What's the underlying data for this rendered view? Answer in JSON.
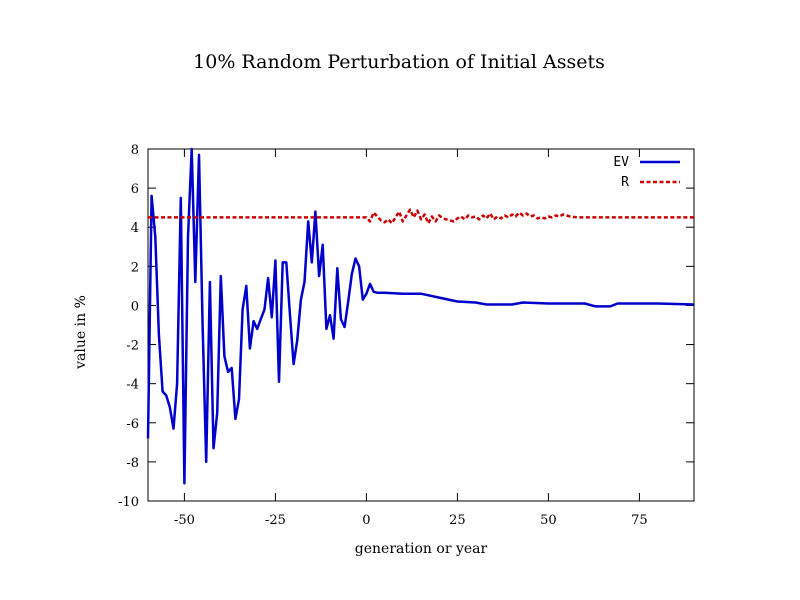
{
  "chart_data": {
    "type": "line",
    "title": "10% Random Perturbation of Initial Assets",
    "xlabel": "generation or year",
    "ylabel": "value in %",
    "xlim": [
      -60,
      90
    ],
    "ylim": [
      -10,
      8
    ],
    "xticks": [
      -50,
      -25,
      0,
      25,
      50,
      75
    ],
    "yticks": [
      -10,
      -8,
      -6,
      -4,
      -2,
      0,
      2,
      4,
      6,
      8
    ],
    "grid": false,
    "legend": "top-right",
    "series": [
      {
        "name": "EV",
        "color": "#0000cc",
        "style": "solid",
        "points": [
          [
            -60,
            -6.8
          ],
          [
            -59,
            5.6
          ],
          [
            -58,
            3.5
          ],
          [
            -57,
            -1.5
          ],
          [
            -56,
            -4.4
          ],
          [
            -55,
            -4.6
          ],
          [
            -54,
            -5.2
          ],
          [
            -53,
            -6.3
          ],
          [
            -52,
            -4.0
          ],
          [
            -51,
            5.5
          ],
          [
            -50,
            -9.1
          ],
          [
            -49,
            3.5
          ],
          [
            -48,
            8.0
          ],
          [
            -47,
            1.2
          ],
          [
            -46,
            7.7
          ],
          [
            -45,
            -1.0
          ],
          [
            -44,
            -8.0
          ],
          [
            -43,
            1.2
          ],
          [
            -42,
            -7.3
          ],
          [
            -41,
            -5.5
          ],
          [
            -40,
            1.5
          ],
          [
            -39,
            -2.6
          ],
          [
            -38,
            -3.4
          ],
          [
            -37,
            -3.2
          ],
          [
            -36,
            -5.8
          ],
          [
            -35,
            -4.8
          ],
          [
            -34,
            -0.2
          ],
          [
            -33,
            1.0
          ],
          [
            -32,
            -2.2
          ],
          [
            -31,
            -0.8
          ],
          [
            -30,
            -1.2
          ],
          [
            -29,
            -0.7
          ],
          [
            -28,
            -0.2
          ],
          [
            -27,
            1.4
          ],
          [
            -26,
            -0.6
          ],
          [
            -25,
            2.3
          ],
          [
            -24,
            -3.9
          ],
          [
            -23,
            2.2
          ],
          [
            -22,
            2.2
          ],
          [
            -21,
            -0.5
          ],
          [
            -20,
            -3.0
          ],
          [
            -19,
            -1.8
          ],
          [
            -18,
            0.3
          ],
          [
            -17,
            1.2
          ],
          [
            -16,
            4.3
          ],
          [
            -15,
            2.2
          ],
          [
            -14,
            4.8
          ],
          [
            -13,
            1.5
          ],
          [
            -12,
            3.1
          ],
          [
            -11,
            -1.2
          ],
          [
            -10,
            -0.5
          ],
          [
            -9,
            -1.7
          ],
          [
            -8,
            1.9
          ],
          [
            -7,
            -0.7
          ],
          [
            -6,
            -1.1
          ],
          [
            -5,
            0.2
          ],
          [
            -4,
            1.6
          ],
          [
            -3,
            2.4
          ],
          [
            -2,
            2.0
          ],
          [
            -1,
            0.3
          ],
          [
            0,
            0.6
          ],
          [
            1,
            1.1
          ],
          [
            2,
            0.7
          ],
          [
            3,
            0.65
          ],
          [
            5,
            0.65
          ],
          [
            10,
            0.6
          ],
          [
            15,
            0.6
          ],
          [
            20,
            0.4
          ],
          [
            25,
            0.2
          ],
          [
            30,
            0.15
          ],
          [
            33,
            0.05
          ],
          [
            40,
            0.05
          ],
          [
            43,
            0.15
          ],
          [
            50,
            0.1
          ],
          [
            60,
            0.1
          ],
          [
            63,
            -0.05
          ],
          [
            67,
            -0.05
          ],
          [
            69,
            0.1
          ],
          [
            80,
            0.1
          ],
          [
            90,
            0.05
          ]
        ]
      },
      {
        "name": "R",
        "color": "#cc0000",
        "style": "dashed",
        "points": [
          [
            -60,
            4.5
          ],
          [
            0,
            4.5
          ],
          [
            1,
            4.3
          ],
          [
            2,
            4.75
          ],
          [
            3,
            4.55
          ],
          [
            4,
            4.35
          ],
          [
            5,
            4.25
          ],
          [
            6,
            4.4
          ],
          [
            7,
            4.2
          ],
          [
            8,
            4.5
          ],
          [
            9,
            4.8
          ],
          [
            10,
            4.3
          ],
          [
            11,
            4.6
          ],
          [
            12,
            4.9
          ],
          [
            13,
            4.5
          ],
          [
            14,
            4.85
          ],
          [
            15,
            4.4
          ],
          [
            16,
            4.65
          ],
          [
            17,
            4.2
          ],
          [
            18,
            4.55
          ],
          [
            19,
            4.3
          ],
          [
            20,
            4.6
          ],
          [
            21,
            4.45
          ],
          [
            22,
            4.4
          ],
          [
            23,
            4.35
          ],
          [
            24,
            4.3
          ],
          [
            25,
            4.45
          ],
          [
            26,
            4.55
          ],
          [
            27,
            4.4
          ],
          [
            28,
            4.6
          ],
          [
            29,
            4.5
          ],
          [
            30,
            4.55
          ],
          [
            31,
            4.4
          ],
          [
            32,
            4.6
          ],
          [
            33,
            4.45
          ],
          [
            34,
            4.7
          ],
          [
            35,
            4.4
          ],
          [
            36,
            4.55
          ],
          [
            37,
            4.45
          ],
          [
            38,
            4.6
          ],
          [
            39,
            4.5
          ],
          [
            40,
            4.65
          ],
          [
            41,
            4.55
          ],
          [
            42,
            4.75
          ],
          [
            43,
            4.6
          ],
          [
            44,
            4.7
          ],
          [
            45,
            4.55
          ],
          [
            46,
            4.6
          ],
          [
            47,
            4.45
          ],
          [
            48,
            4.5
          ],
          [
            49,
            4.45
          ],
          [
            50,
            4.55
          ],
          [
            51,
            4.5
          ],
          [
            52,
            4.6
          ],
          [
            53,
            4.55
          ],
          [
            54,
            4.65
          ],
          [
            55,
            4.6
          ],
          [
            56,
            4.55
          ],
          [
            58,
            4.5
          ],
          [
            60,
            4.5
          ],
          [
            90,
            4.5
          ]
        ]
      }
    ]
  }
}
